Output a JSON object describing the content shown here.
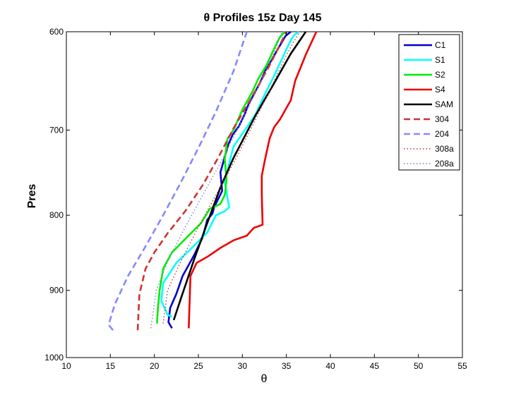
{
  "chart_data": {
    "type": "line",
    "title": "θ Profiles 15z Day 145",
    "xlabel": "θ",
    "ylabel": "Pres",
    "xlim": [
      10,
      55
    ],
    "ylim": [
      600,
      1000
    ],
    "y_axis_reversed": true,
    "y_scale": "log",
    "xticks": [
      "10",
      "15",
      "20",
      "25",
      "30",
      "35",
      "40",
      "45",
      "50",
      "55"
    ],
    "yticks": [
      "600",
      "700",
      "800",
      "900",
      "1000"
    ],
    "grid": false,
    "legend_position": "top-right",
    "series": [
      {
        "name": "C1",
        "color": "#0000cc",
        "style": "solid",
        "x": [
          22.0,
          21.6,
          21.8,
          22.5,
          23.2,
          24.5,
          25.5,
          26.0,
          26.6,
          26.8,
          27.7,
          27.5,
          28.0,
          28.4,
          28.9,
          29.6,
          30.3,
          30.7,
          31.3,
          32.0,
          32.6,
          33.4,
          34.2,
          34.9,
          35.5
        ],
        "y": [
          955,
          946,
          925,
          905,
          880,
          852,
          828,
          806,
          798,
          790,
          770,
          748,
          730,
          716,
          705,
          696,
          682,
          672,
          662,
          650,
          638,
          626,
          614,
          604,
          600
        ]
      },
      {
        "name": "S1",
        "color": "#00ffff",
        "style": "solid",
        "x": [
          22.0,
          21.5,
          20.8,
          21.0,
          22.5,
          24.0,
          26.0,
          27.0,
          28.0,
          28.5,
          28.0,
          28.6,
          29.0,
          30.0,
          31.5,
          32.6,
          33.7,
          34.6,
          35.5,
          35.9,
          36.4
        ],
        "y": [
          938,
          935,
          915,
          890,
          862,
          845,
          822,
          800,
          795,
          790,
          760,
          733,
          718,
          704,
          683,
          661,
          641,
          624,
          608,
          603,
          600
        ]
      },
      {
        "name": "S2",
        "color": "#00ee00",
        "style": "solid",
        "x": [
          20.3,
          20.4,
          20.6,
          21.0,
          22.0,
          23.8,
          25.3,
          26.3,
          27.5,
          28.0,
          28.2,
          28.0,
          28.3,
          29.1,
          30.0,
          31.1,
          31.8,
          32.7,
          33.4,
          34.2,
          34.8
        ],
        "y": [
          948,
          925,
          900,
          870,
          848,
          827,
          810,
          792,
          786,
          775,
          757,
          733,
          710,
          698,
          678,
          660,
          646,
          633,
          620,
          606,
          600
        ]
      },
      {
        "name": "S4",
        "color": "#ee0000",
        "style": "solid",
        "x": [
          23.9,
          24.0,
          24.1,
          24.8,
          26.0,
          27.5,
          29.0,
          30.5,
          31.3,
          32.3,
          32.2,
          32.2,
          32.6,
          33.1,
          33.6,
          34.3,
          35.5,
          36.0,
          37.2,
          38.4
        ],
        "y": [
          955,
          920,
          880,
          862,
          854,
          842,
          832,
          826,
          816,
          812,
          775,
          752,
          732,
          709,
          697,
          688,
          668,
          648,
          622,
          600
        ]
      },
      {
        "name": "SAM",
        "color": "#000000",
        "style": "solid",
        "x": [
          22.2,
          23.0,
          24.5,
          26.0,
          27.5,
          29.0,
          30.0,
          31.5,
          33.5,
          35.5,
          37.2
        ],
        "y": [
          943,
          912,
          858,
          810,
          766,
          731,
          712,
          684,
          652,
          621,
          600
        ]
      },
      {
        "name": "304",
        "color": "#cc3333",
        "style": "dashed",
        "x": [
          18.1,
          18.3,
          19.0,
          20.0,
          21.5,
          23.5,
          25.5,
          27.2,
          29.0,
          31.0,
          33.0,
          35.0
        ],
        "y": [
          958,
          905,
          870,
          848,
          823,
          795,
          763,
          732,
          698,
          666,
          634,
          600
        ]
      },
      {
        "name": "204",
        "color": "#8888ff",
        "style": "dashed",
        "x": [
          15.3,
          14.8,
          15.5,
          17.0,
          19.0,
          21.0,
          23.0,
          25.0,
          27.0,
          29.0,
          30.5
        ],
        "y": [
          958,
          950,
          920,
          880,
          840,
          800,
          760,
          720,
          680,
          638,
          600
        ]
      },
      {
        "name": "308a",
        "color": "#cc3333",
        "style": "dotted",
        "x": [
          21.0,
          21.5,
          23.0,
          25.0,
          27.0,
          29.0,
          31.0,
          33.0,
          35.0,
          36.5
        ],
        "y": [
          948,
          900,
          860,
          815,
          775,
          737,
          698,
          660,
          622,
          600
        ]
      },
      {
        "name": "208a",
        "color": "#8080c0",
        "style": "dotted",
        "x": [
          19.6,
          20.2,
          21.5,
          23.5,
          25.5,
          27.5,
          29.5,
          31.5,
          33.5,
          34.5
        ],
        "y": [
          955,
          900,
          860,
          815,
          775,
          737,
          698,
          660,
          622,
          600
        ]
      }
    ]
  }
}
